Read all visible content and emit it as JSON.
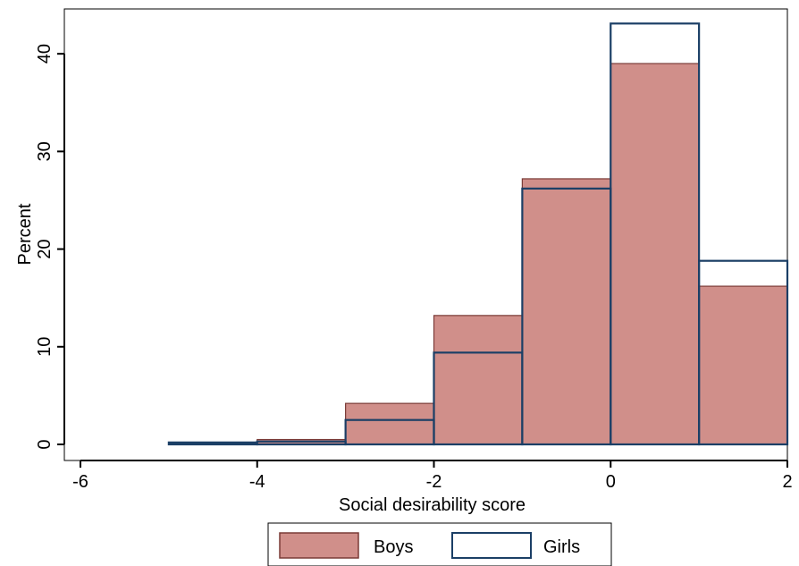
{
  "chart_data": {
    "type": "bar",
    "subtype": "overlaid-histogram",
    "title": "",
    "xlabel": "Social desirability score",
    "ylabel": "Percent",
    "xlim": [
      -6,
      2
    ],
    "ylim": [
      0,
      43
    ],
    "xticks": [
      -6,
      -4,
      -2,
      0,
      2
    ],
    "yticks": [
      0,
      10,
      20,
      30,
      40
    ],
    "xtick_labels": [
      "-6",
      "-4",
      "-2",
      "0",
      "2"
    ],
    "ytick_labels": [
      "0",
      "10",
      "20",
      "30",
      "40"
    ],
    "bin_edges": [
      -5,
      -4,
      -3,
      -2,
      -1,
      0,
      1,
      2
    ],
    "grid": false,
    "legend_position": "bottom",
    "series": [
      {
        "name": "Boys",
        "style": "filled",
        "fill": "#d08f8a",
        "stroke": "#7a3b37",
        "values": [
          0,
          0.5,
          4.2,
          13.2,
          27.2,
          39.0,
          16.2
        ]
      },
      {
        "name": "Girls",
        "style": "outline",
        "fill": "none",
        "stroke": "#1b3f66",
        "values": [
          0.2,
          0.3,
          2.5,
          9.4,
          26.2,
          43.1,
          18.8
        ]
      }
    ]
  }
}
